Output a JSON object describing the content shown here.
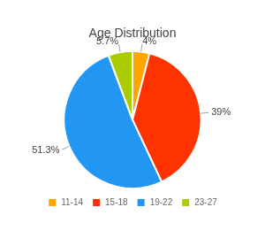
{
  "chart_data": {
    "type": "pie",
    "title": "Age Distribution",
    "categories": [
      "11-14",
      "15-18",
      "19-22",
      "23-27"
    ],
    "values": [
      4.0,
      39.0,
      51.3,
      5.7
    ],
    "value_labels": [
      "4%",
      "39%",
      "51.3%",
      "5.7%"
    ],
    "colors": [
      "#FFA500",
      "#FF3300",
      "#2196F3",
      "#AACC00"
    ],
    "data_labels": true,
    "legend": "bottom"
  }
}
